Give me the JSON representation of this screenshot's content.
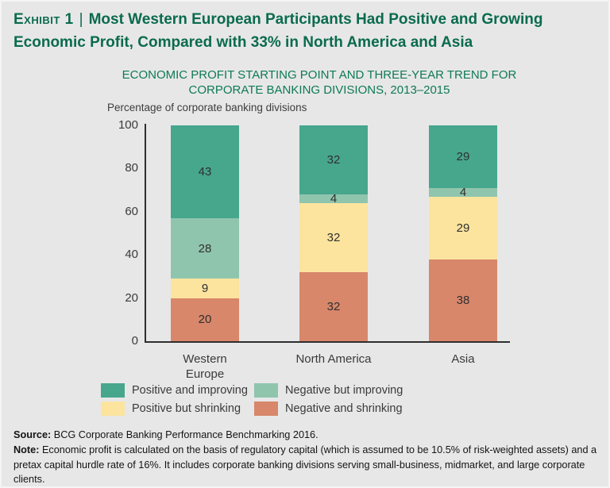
{
  "page": {
    "background": "#e7e7e8"
  },
  "header": {
    "exhibit_label": "Exhibit 1",
    "separator": "|",
    "title": "Most Western European Participants Had Positive and Growing Economic Profit, Compared with 33% in North America and Asia",
    "title_color": "#0a6b4c"
  },
  "chart_data": {
    "type": "bar",
    "stacked": true,
    "title": "ECONOMIC PROFIT STARTING POINT AND THREE-YEAR TREND FOR CORPORATE BANKING DIVISIONS, 2013–2015",
    "ylabel": "Percentage of corporate banking divisions",
    "ylim": [
      0,
      100
    ],
    "yticks": [
      100,
      80,
      60,
      40,
      20,
      0
    ],
    "grid": false,
    "legend_position": "bottom",
    "stack_order": "series listed top to bottom within each bar",
    "categories": [
      "Western Europe",
      "North America",
      "Asia"
    ],
    "series": [
      {
        "name": "Positive and improving",
        "color": "#46a78d",
        "values": [
          43,
          32,
          29
        ]
      },
      {
        "name": "Negative but improving",
        "color": "#90c5ad",
        "values": [
          28,
          4,
          4
        ]
      },
      {
        "name": "Positive but shrinking",
        "color": "#fce49f",
        "values": [
          9,
          32,
          29
        ]
      },
      {
        "name": "Negative and shrinking",
        "color": "#d8876a",
        "values": [
          20,
          32,
          38
        ]
      }
    ]
  },
  "footer": {
    "source_label": "Source:",
    "source_text": " BCG Corporate Banking Performance Benchmarking 2016.",
    "note_label": "Note:",
    "note_text": " Economic profit is calculated on the basis of regulatory capital (which is assumed to be 10.5% of risk-weighted assets) and a pretax capital hurdle rate of 16%. It includes corporate banking divisions serving small-business, midmarket, and large corporate clients."
  }
}
